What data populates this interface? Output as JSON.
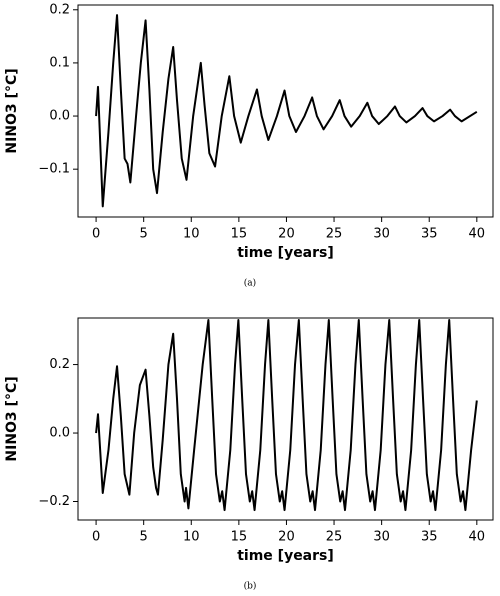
{
  "chart_data": [
    {
      "type": "line",
      "caption": "(a)",
      "xlabel": "time [years]",
      "ylabel": "NINO3 [°C]",
      "color": "#000000",
      "xlim": [
        -1.9,
        41.7
      ],
      "xticks": [
        0,
        5,
        10,
        15,
        20,
        25,
        30,
        35,
        40
      ],
      "ylim": [
        -0.19,
        0.209
      ],
      "yticks": [
        {
          "value": -0.1,
          "label": "−0.1"
        },
        {
          "value": 0,
          "label": "0.0"
        },
        0.1,
        0.2
      ],
      "x": [
        0,
        0.2,
        0.7,
        1.3,
        1.8,
        2.2,
        2.6,
        3.0,
        3.3,
        3.6,
        4.2,
        4.7,
        5.2,
        5.6,
        6.0,
        6.4,
        7.0,
        7.6,
        8.1,
        8.5,
        9.0,
        9.5,
        10.2,
        11.0,
        11.4,
        11.9,
        12.5,
        13.2,
        14.0,
        14.5,
        15.2,
        16.0,
        16.9,
        17.4,
        18.1,
        19.0,
        19.8,
        20.3,
        21.0,
        21.9,
        22.7,
        23.2,
        23.9,
        24.8,
        25.6,
        26.1,
        26.8,
        27.7,
        28.5,
        29.0,
        29.7,
        30.6,
        31.4,
        31.9,
        32.6,
        33.5,
        34.3,
        34.8,
        35.5,
        36.4,
        37.2,
        37.7,
        38.4,
        40.0
      ],
      "values": [
        0,
        0.055,
        -0.17,
        -0.03,
        0.1,
        0.19,
        0.05,
        -0.08,
        -0.09,
        -0.125,
        0.0,
        0.1,
        0.18,
        0.05,
        -0.1,
        -0.145,
        -0.03,
        0.07,
        0.13,
        0.03,
        -0.08,
        -0.12,
        0.0,
        0.1,
        0.02,
        -0.07,
        -0.095,
        0.0,
        0.075,
        0.0,
        -0.05,
        0.0,
        0.05,
        0.0,
        -0.045,
        0.0,
        0.048,
        0.0,
        -0.03,
        0.0,
        0.035,
        0.0,
        -0.025,
        0.0,
        0.03,
        0.0,
        -0.02,
        0.0,
        0.025,
        0.0,
        -0.015,
        0.0,
        0.018,
        0.0,
        -0.012,
        0.0,
        0.015,
        0.0,
        -0.01,
        0.0,
        0.012,
        0.0,
        -0.01,
        0.008
      ]
    },
    {
      "type": "line",
      "caption": "(b)",
      "xlabel": "time [years]",
      "ylabel": "NINO3 [°C]",
      "color": "#000000",
      "xlim": [
        -1.9,
        41.7
      ],
      "xticks": [
        0,
        5,
        10,
        15,
        20,
        25,
        30,
        35,
        40
      ],
      "ylim": [
        -0.254,
        0.336
      ],
      "yticks": [
        {
          "value": -0.2,
          "label": "−0.2"
        },
        {
          "value": 0,
          "label": "0.0"
        },
        0.2
      ],
      "x": [
        0,
        0.2,
        0.7,
        1.3,
        1.8,
        2.2,
        2.6,
        3.0,
        3.5,
        4.0,
        4.6,
        5.2,
        5.6,
        6.0,
        6.3,
        6.5,
        7.0,
        7.6,
        8.1,
        8.5,
        8.9,
        9.3,
        9.45,
        9.7,
        10.3,
        11.2,
        11.8,
        12.2,
        12.6,
        13.0,
        13.25,
        13.5,
        14.1,
        14.6,
        14.95,
        15.35,
        15.75,
        16.15,
        16.4,
        16.65,
        17.25,
        17.75,
        18.1,
        18.5,
        18.9,
        19.3,
        19.55,
        19.8,
        20.4,
        20.9,
        21.3,
        21.7,
        22.1,
        22.5,
        22.75,
        23.0,
        23.6,
        24.1,
        24.45,
        24.85,
        25.25,
        25.65,
        25.9,
        26.15,
        26.75,
        27.25,
        27.6,
        28.0,
        28.4,
        28.8,
        29.05,
        29.3,
        29.9,
        30.4,
        30.8,
        31.2,
        31.6,
        32.0,
        32.25,
        32.5,
        33.1,
        33.6,
        33.95,
        34.35,
        34.75,
        35.15,
        35.4,
        35.65,
        36.25,
        36.75,
        37.1,
        37.5,
        37.9,
        38.3,
        38.55,
        38.8,
        39.4,
        40.0
      ],
      "values": [
        0,
        0.055,
        -0.175,
        -0.05,
        0.1,
        0.195,
        0.05,
        -0.12,
        -0.18,
        0,
        0.14,
        0.185,
        0.05,
        -0.1,
        -0.16,
        -0.18,
        -0.02,
        0.2,
        0.29,
        0.1,
        -0.12,
        -0.2,
        -0.16,
        -0.22,
        -0.05,
        0.2,
        0.33,
        0.1,
        -0.12,
        -0.2,
        -0.17,
        -0.225,
        -0.05,
        0.2,
        0.33,
        0.1,
        -0.12,
        -0.2,
        -0.17,
        -0.225,
        -0.05,
        0.2,
        0.33,
        0.1,
        -0.12,
        -0.2,
        -0.17,
        -0.225,
        -0.05,
        0.2,
        0.33,
        0.1,
        -0.12,
        -0.2,
        -0.17,
        -0.225,
        -0.05,
        0.2,
        0.33,
        0.1,
        -0.12,
        -0.2,
        -0.17,
        -0.225,
        -0.05,
        0.2,
        0.33,
        0.1,
        -0.12,
        -0.2,
        -0.17,
        -0.225,
        -0.05,
        0.2,
        0.33,
        0.1,
        -0.12,
        -0.2,
        -0.17,
        -0.225,
        -0.05,
        0.2,
        0.33,
        0.1,
        -0.12,
        -0.2,
        -0.17,
        -0.225,
        -0.05,
        0.2,
        0.33,
        0.1,
        -0.12,
        -0.2,
        -0.17,
        -0.225,
        -0.05,
        0.095
      ]
    }
  ]
}
